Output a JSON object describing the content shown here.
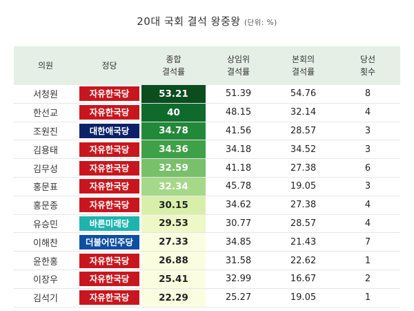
{
  "title": "20대 국회 결석 왕중왕",
  "unit": "(단위: %)",
  "headers": {
    "name": "의원",
    "party": "정당",
    "total": [
      "종합",
      "결석률"
    ],
    "standing": [
      "상임위",
      "결석률"
    ],
    "plenary": [
      "본회의",
      "결석률"
    ],
    "elected": [
      "당선",
      "횟수"
    ]
  },
  "party_colors": {
    "자유한국당": "#c8161e",
    "대한애국당": "#0b2168",
    "바른미래당": "#1fb3ae",
    "더불어민주당": "#0d4fa3"
  },
  "score_colors": [
    "#0b4d1f",
    "#0f6b2c",
    "#23893a",
    "#3fa147",
    "#78c06a",
    "#a6d88a",
    "#d8efaa",
    "#eef8c6",
    "#fbfde0",
    "#fbfde0",
    "#fbfde0",
    "#fbfde0"
  ],
  "score_text_colors": [
    "#ffffff",
    "#ffffff",
    "#ffffff",
    "#ffffff",
    "#ffffff",
    "#ffffff",
    "#222222",
    "#222222",
    "#222222",
    "#222222",
    "#222222",
    "#222222"
  ],
  "rows": [
    {
      "name": "서청원",
      "party": "자유한국당",
      "total": "53.21",
      "standing": "51.39",
      "plenary": "54.76",
      "elected": "8"
    },
    {
      "name": "한선교",
      "party": "자유한국당",
      "total": "40",
      "standing": "48.15",
      "plenary": "32.14",
      "elected": "4"
    },
    {
      "name": "조원진",
      "party": "대한애국당",
      "total": "34.78",
      "standing": "41.56",
      "plenary": "28.57",
      "elected": "3"
    },
    {
      "name": "김용태",
      "party": "자유한국당",
      "total": "34.36",
      "standing": "34.18",
      "plenary": "34.52",
      "elected": "3"
    },
    {
      "name": "김무성",
      "party": "자유한국당",
      "total": "32.59",
      "standing": "41.18",
      "plenary": "27.38",
      "elected": "6"
    },
    {
      "name": "홍문표",
      "party": "자유한국당",
      "total": "32.34",
      "standing": "45.78",
      "plenary": "19.05",
      "elected": "3"
    },
    {
      "name": "홍문종",
      "party": "자유한국당",
      "total": "30.15",
      "standing": "34.62",
      "plenary": "27.38",
      "elected": "4"
    },
    {
      "name": "유승민",
      "party": "바른미래당",
      "total": "29.53",
      "standing": "30.77",
      "plenary": "28.57",
      "elected": "4"
    },
    {
      "name": "이해찬",
      "party": "더불어민주당",
      "total": "27.33",
      "standing": "34.85",
      "plenary": "21.43",
      "elected": "7"
    },
    {
      "name": "윤한홍",
      "party": "자유한국당",
      "total": "26.88",
      "standing": "31.58",
      "plenary": "22.62",
      "elected": "1"
    },
    {
      "name": "이장우",
      "party": "자유한국당",
      "total": "25.41",
      "standing": "32.99",
      "plenary": "16.67",
      "elected": "2"
    },
    {
      "name": "김석기",
      "party": "자유한국당",
      "total": "22.29",
      "standing": "25.27",
      "plenary": "19.05",
      "elected": "1"
    }
  ]
}
